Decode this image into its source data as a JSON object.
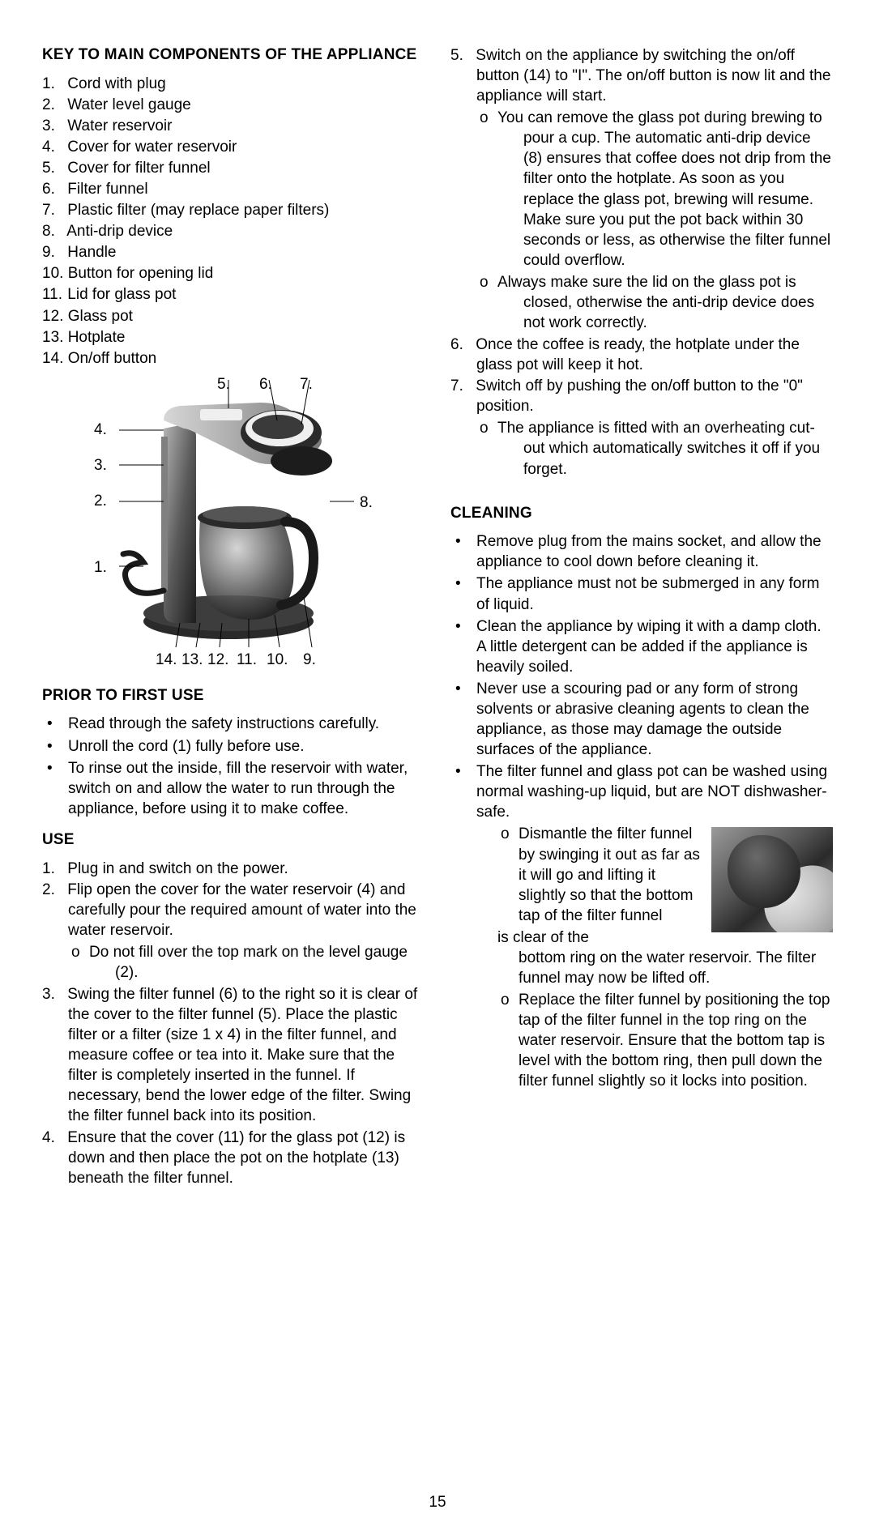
{
  "page_number": "15",
  "left": {
    "heading_components": "KEY TO MAIN COMPONENTS OF THE APPLIANCE",
    "components": [
      "Cord with plug",
      "Water level gauge",
      "Water reservoir",
      "Cover for water reservoir",
      "Cover for filter funnel",
      "Filter funnel",
      "Plastic filter (may replace paper filters)",
      "Anti-drip device",
      "Handle",
      "Button for opening lid",
      "Lid for glass pot",
      "Glass pot",
      "Hotplate",
      "On/off button"
    ],
    "diagram_labels": {
      "top": [
        "5.",
        "6.",
        "7."
      ],
      "left": [
        "4.",
        "3.",
        "2.",
        "1."
      ],
      "right": "8.",
      "bottom": [
        "14.",
        "13.",
        "12.",
        "11.",
        "10.",
        "9."
      ]
    },
    "heading_prior": "PRIOR TO FIRST USE",
    "prior_items": [
      "Read through the safety instructions carefully.",
      "Unroll the cord (1) fully before use.",
      "To rinse out the inside, fill the reservoir with water, switch on and allow the water to run through the appliance, before using it to make coffee."
    ],
    "heading_use": "USE",
    "use_items": [
      {
        "text": "Plug in and switch on the power."
      },
      {
        "text": "Flip open the cover for the water reservoir (4) and carefully pour the required amount of water into the water reservoir.",
        "sub": [
          "Do not fill over the top mark on the level gauge (2)."
        ]
      },
      {
        "text": "Swing the filter funnel (6) to the right so it is clear of the cover to the filter funnel (5). Place the plastic filter or a filter (size 1 x 4) in the filter funnel, and measure coffee or tea into it. Make sure that the filter is completely inserted in the funnel. If necessary, bend the lower edge of the filter. Swing the filter funnel back into its position."
      },
      {
        "text": "Ensure that the cover (11) for the glass pot (12) is down and then place the pot on the hotplate (13) beneath the filter funnel."
      }
    ]
  },
  "right": {
    "use_cont": [
      {
        "num": "5.",
        "text": "Switch on the appliance by switching the on/off button (14) to \"I\". The on/off button is now lit and the appliance will start.",
        "sub": [
          "You can remove the glass pot during brewing to pour a cup. The automatic anti-drip device (8) ensures that coffee does not drip from the filter onto the hotplate. As soon as you replace the glass pot, brewing will resume. Make sure you put the pot back within 30 seconds or less, as otherwise the filter funnel could overflow.",
          "Always make sure the lid on the glass pot is closed, otherwise the anti-drip device does not work correctly."
        ]
      },
      {
        "num": "6.",
        "text": "Once the coffee is ready, the hotplate under the glass pot will keep it hot."
      },
      {
        "num": "7.",
        "text": "Switch off by pushing the on/off button to the \"0\" position.",
        "sub": [
          "The appliance is fitted with an overheating cut-out which automatically switches it off if you forget."
        ]
      }
    ],
    "heading_cleaning": "CLEANING",
    "cleaning_items": [
      {
        "text": "Remove plug from the mains socket, and allow the appliance to cool down before cleaning it."
      },
      {
        "text": "The appliance must not be submerged in any form of liquid."
      },
      {
        "text": "Clean the appliance by wiping it with a damp cloth. A little detergent can be added if the appliance is heavily soiled."
      },
      {
        "text": "Never use a scouring pad or any form of strong solvents or abrasive cleaning agents to clean the appliance, as those may damage the outside surfaces of the appliance."
      },
      {
        "text": "The filter funnel and glass pot can be washed using normal washing-up liquid, but are NOT dishwasher-safe.",
        "sub_wrap": "Dismantle the filter funnel by swinging it out as far as it will go and lifting it slightly so that the bottom tap of the filter funnel",
        "sub_wrap_tail": "is clear of the",
        "sub_tail2": "bottom ring on the water reservoir. The filter funnel may now be lifted off.",
        "sub2": "Replace the filter funnel by positioning the top tap of the filter funnel in the top ring on the water reservoir. Ensure that the bottom tap is level with the bottom ring, then pull down the filter funnel slightly so it locks into position."
      }
    ]
  }
}
